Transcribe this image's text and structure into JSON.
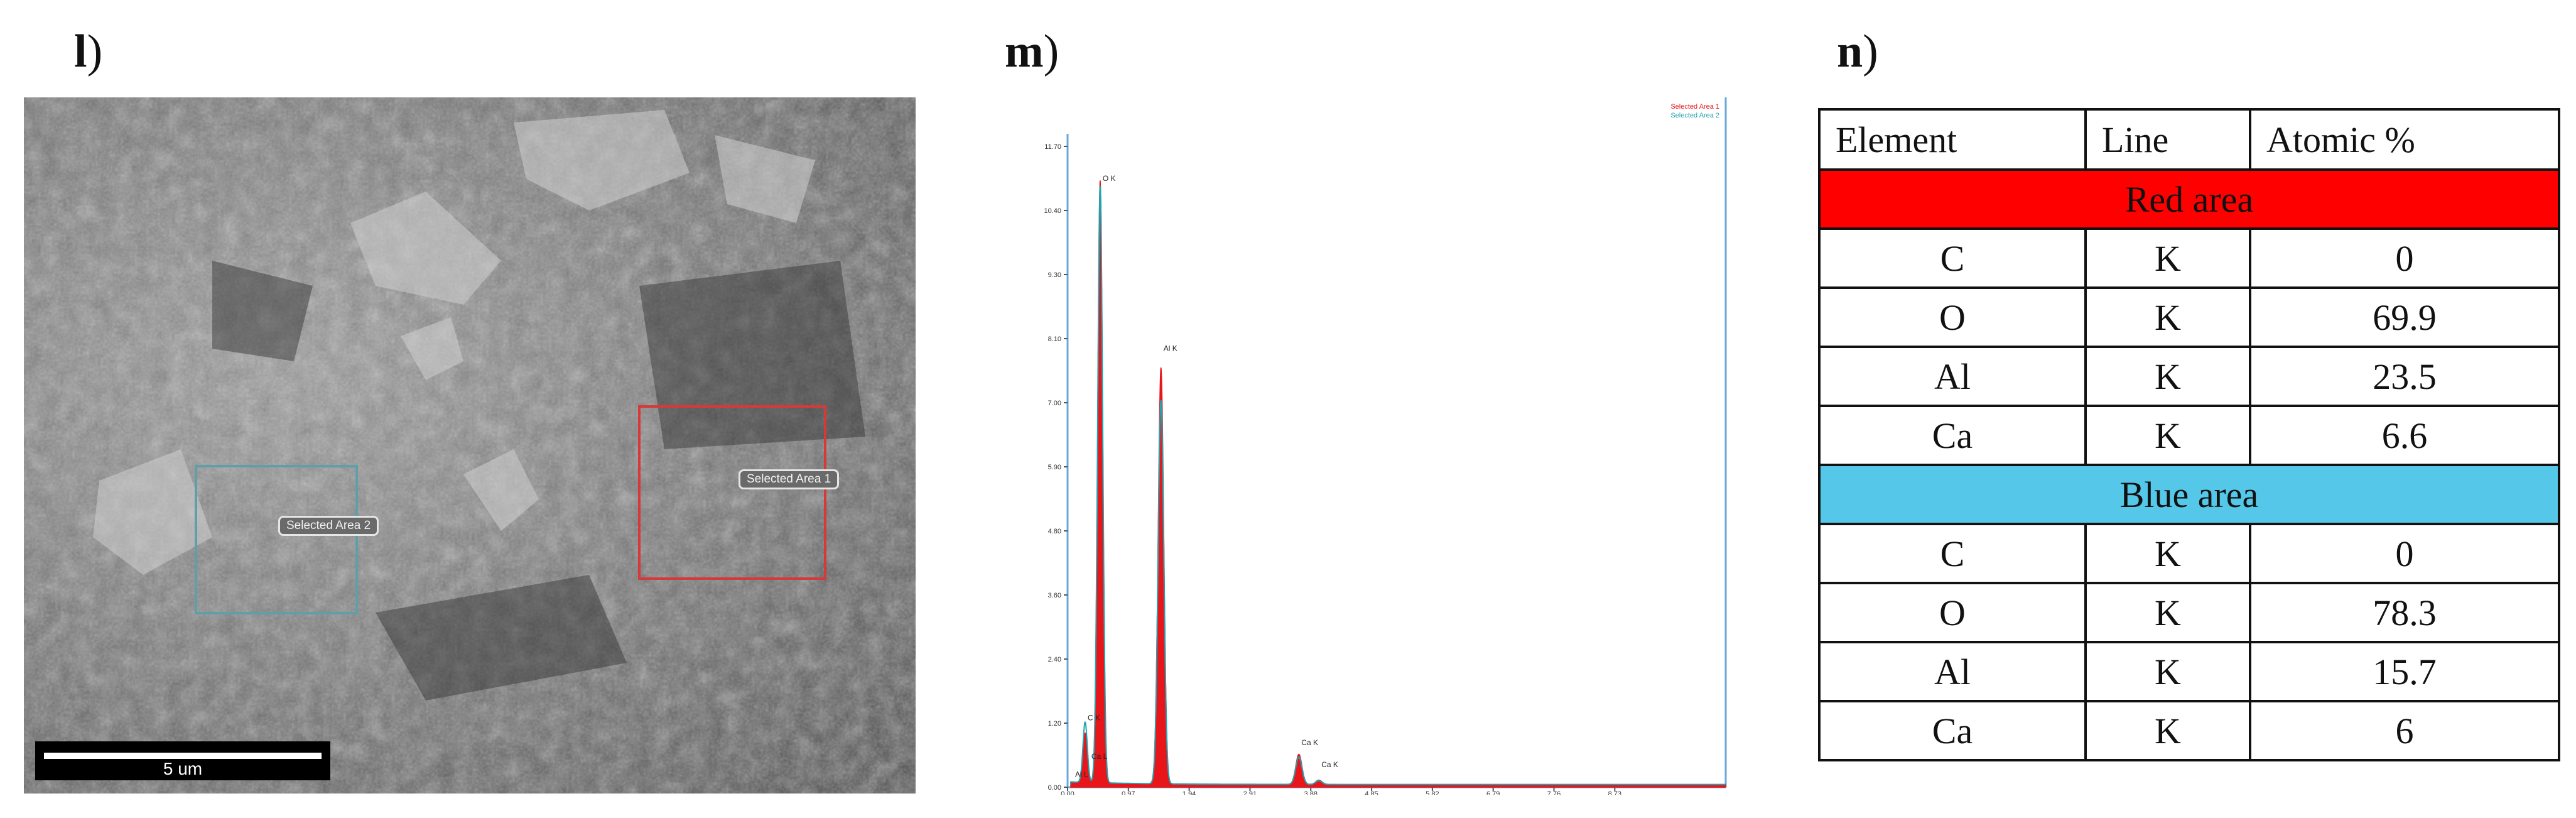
{
  "panels": {
    "l": {
      "letter": "l",
      "paren": ")"
    },
    "m": {
      "letter": "m",
      "paren": ")"
    },
    "n": {
      "letter": "n",
      "paren": ")"
    }
  },
  "sem": {
    "selected_area_1": "Selected Area 1",
    "selected_area_2": "Selected Area 2",
    "scale_bar_label": "5 um",
    "box_colors": {
      "area_1": "#d43a3a",
      "area_2": "#5fa0a8"
    }
  },
  "spectrum": {
    "legend": [
      "Selected Area 1",
      "Selected Area 2"
    ]
  },
  "chart_data": {
    "type": "line",
    "title": "",
    "xlabel": "",
    "ylabel": "",
    "xlim": [
      0,
      10.5
    ],
    "ylim": [
      0,
      11.7
    ],
    "x_ticks": [
      "0.00",
      "0.97",
      "1.94",
      "2.91",
      "3.88",
      "4.85",
      "5.82",
      "6.79",
      "7.76",
      "8.73"
    ],
    "y_ticks": [
      "0.00",
      "1.20",
      "2.40",
      "3.60",
      "4.80",
      "5.90",
      "7.00",
      "8.10",
      "9.30",
      "10.40",
      "11.70"
    ],
    "series": [
      {
        "name": "Selected Area 1",
        "color": "#e8161b",
        "peaks": [
          {
            "x": 0.28,
            "y": 0.9
          },
          {
            "x": 0.52,
            "y": 11.0
          },
          {
            "x": 1.49,
            "y": 7.6
          },
          {
            "x": 3.69,
            "y": 0.55
          },
          {
            "x": 4.01,
            "y": 0.08
          }
        ]
      },
      {
        "name": "Selected Area 2",
        "color": "#23a3b0",
        "peaks": [
          {
            "x": 0.28,
            "y": 1.1
          },
          {
            "x": 0.52,
            "y": 10.9
          },
          {
            "x": 1.49,
            "y": 7.0
          },
          {
            "x": 3.69,
            "y": 0.5
          },
          {
            "x": 4.01,
            "y": 0.07
          }
        ]
      }
    ],
    "annotations": [
      {
        "label": "C K",
        "x": 0.28,
        "y": 1.15
      },
      {
        "label": "O K",
        "x": 0.52,
        "y": 11.0
      },
      {
        "label": "Al K",
        "x": 1.49,
        "y": 7.9
      },
      {
        "label": "Ca K",
        "x": 3.69,
        "y": 0.7
      },
      {
        "label": "Ca K",
        "x": 4.01,
        "y": 0.3
      },
      {
        "label": "Al L",
        "x": 0.08,
        "y": 0.12
      },
      {
        "label": "Ca L",
        "x": 0.34,
        "y": 0.45
      }
    ]
  },
  "table": {
    "headers": [
      "Element",
      "Line",
      "Atomic %"
    ],
    "groups": [
      {
        "name": "Red area",
        "color": "#ff0000",
        "rows": [
          [
            "C",
            "K",
            "0"
          ],
          [
            "O",
            "K",
            "69.9"
          ],
          [
            "Al",
            "K",
            "23.5"
          ],
          [
            "Ca",
            "K",
            "6.6"
          ]
        ]
      },
      {
        "name": "Blue area",
        "color": "#55c8ea",
        "rows": [
          [
            "C",
            "K",
            "0"
          ],
          [
            "O",
            "K",
            "78.3"
          ],
          [
            "Al",
            "K",
            "15.7"
          ],
          [
            "Ca",
            "K",
            "6"
          ]
        ]
      }
    ]
  }
}
